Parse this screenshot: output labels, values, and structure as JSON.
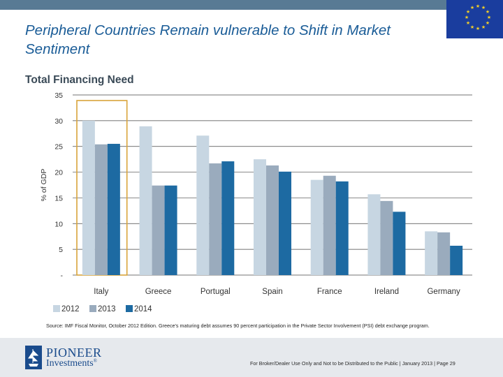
{
  "slide": {
    "title": "Peripheral Countries Remain vulnerable to Shift in Market Sentiment",
    "subtitle": "Total Financing Need",
    "source": "Source: IMF Fiscal Monitor, October 2012 Edition. Greece's maturing debt assumes 90 percent participation in the Private Sector Involvement (PSI) debt exchange program.",
    "disclaimer": "For Broker/Dealer Use Only and Not to be Distributed to the Public | January 2013 | Page 29"
  },
  "logo": {
    "line1": "PIONEER",
    "line2": "Investments",
    "mark": "®"
  },
  "colors": {
    "topbar": "#587a94",
    "title": "#1a5c97",
    "highlight": "#d9a43a"
  },
  "chart_data": {
    "type": "bar",
    "title": "Total Financing Need",
    "ylabel": "% of GDP",
    "xlabel": "",
    "ylim": [
      0,
      35
    ],
    "yticks": [
      35,
      30,
      25,
      20,
      15,
      10,
      5,
      0
    ],
    "ytick_labels": [
      "35",
      "30",
      "25",
      "20",
      "15",
      "10",
      "5",
      "-"
    ],
    "categories": [
      "Italy",
      "Greece",
      "Portugal",
      "Spain",
      "France",
      "Ireland",
      "Germany"
    ],
    "highlighted_category": "Italy",
    "legend_position": "bottom-left",
    "series": [
      {
        "name": "2012",
        "color": "#c7d6e2",
        "values": [
          30.0,
          28.9,
          27.1,
          22.5,
          18.5,
          15.7,
          8.5
        ]
      },
      {
        "name": "2013",
        "color": "#9aabbd",
        "values": [
          25.4,
          17.4,
          21.7,
          21.3,
          19.3,
          14.4,
          8.3
        ]
      },
      {
        "name": "2014",
        "color": "#1d6aa2",
        "values": [
          25.5,
          17.4,
          22.1,
          20.1,
          18.2,
          12.3,
          5.7
        ]
      }
    ]
  }
}
